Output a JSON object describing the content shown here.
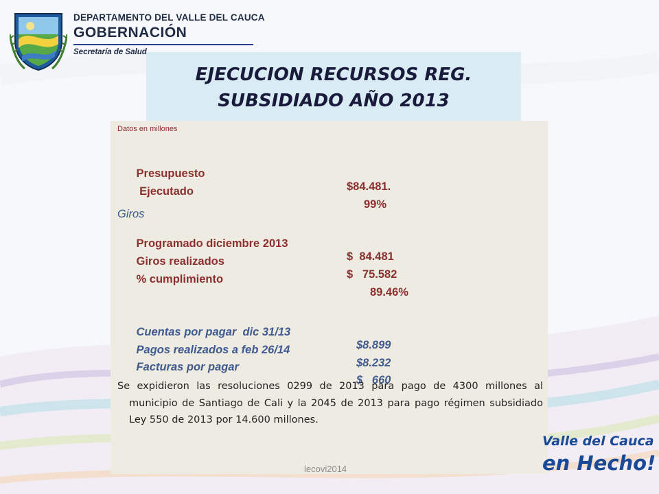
{
  "header": {
    "department": "DEPARTAMENTO DEL VALLE DEL CAUCA",
    "governorate": "GOBERNACIÓN",
    "secretariat": "Secretaría de Salud"
  },
  "title": {
    "line1": "EJECUCION RECURSOS REG.",
    "line2": "SUBSIDIADO AÑO 2013"
  },
  "content": {
    "note": "Datos en millones",
    "budget_label": "Presupuesto",
    "budget_value": "$84.481.",
    "executed_label": " Ejecutado",
    "executed_value": "99%",
    "giros_heading": "Giros",
    "scheduled_label": "Programado diciembre 2013",
    "scheduled_value": "$  84.481",
    "done_label": "Giros realizados",
    "done_value": "$   75.582",
    "compliance_label": "% cumplimiento",
    "compliance_value": "89.46%",
    "payables_label": "Cuentas por pagar  dic 31/13",
    "payables_value": "$8.899",
    "payments_label": "Pagos realizados a feb 26/14",
    "payments_value": "$8.232",
    "invoices_label": "Facturas por pagar",
    "invoices_value": "$   660",
    "paragraph": "Se expidieron las resoluciones 0299 de 2013 para pago de 4300 millones al municipio de Santiago de Cali y la 2045 de 2013 para pago régimen subsidiado Ley 550 de 2013 por 14.600 millones."
  },
  "footer": {
    "text": "lecovi2014"
  },
  "brand": {
    "line1": "Valle del Cauca",
    "line2": "en Hecho!"
  },
  "colors": {
    "title_bg": "#d9ecf4",
    "content_bg": "#eeebe2",
    "red_text": "#8b2f2f",
    "blue_text": "#3f5a8f"
  }
}
